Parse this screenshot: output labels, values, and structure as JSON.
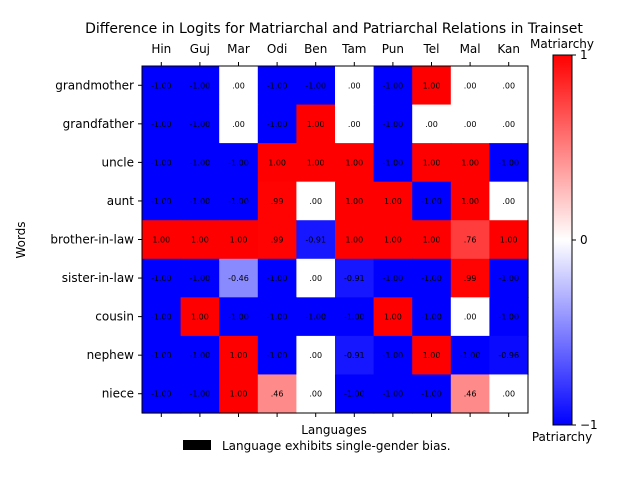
{
  "chart_data": {
    "type": "heatmap",
    "title": "Difference in Logits for Matriarchal and Patriarchal Relations in Trainset",
    "xlabel": "Languages",
    "ylabel": "Words",
    "x_categories": [
      "Hin",
      "Guj",
      "Mar",
      "Odi",
      "Ben",
      "Tam",
      "Pun",
      "Tel",
      "Mal",
      "Kan"
    ],
    "y_categories": [
      "grandmother",
      "grandfather",
      "uncle",
      "aunt",
      "brother-in-law",
      "sister-in-law",
      "cousin",
      "nephew",
      "niece"
    ],
    "values": [
      [
        -1.0,
        -1.0,
        0.0,
        -1.0,
        -1.0,
        0.0,
        -1.0,
        1.0,
        0.0,
        0.0
      ],
      [
        -1.0,
        -1.0,
        0.0,
        -1.0,
        1.0,
        0.0,
        -1.0,
        0.0,
        0.0,
        0.0
      ],
      [
        -1.0,
        -1.0,
        -1.0,
        1.0,
        1.0,
        1.0,
        -1.0,
        1.0,
        1.0,
        -1.0
      ],
      [
        -1.0,
        -1.0,
        -1.0,
        0.99,
        0.0,
        1.0,
        1.0,
        -1.0,
        1.0,
        0.0
      ],
      [
        1.0,
        1.0,
        1.0,
        0.99,
        -0.91,
        1.0,
        1.0,
        1.0,
        0.76,
        1.0
      ],
      [
        -1.0,
        -1.0,
        -0.46,
        -1.0,
        0.0,
        -0.91,
        -1.0,
        -1.0,
        0.99,
        -1.0
      ],
      [
        -1.0,
        1.0,
        -1.0,
        -1.0,
        -1.0,
        -1.0,
        1.0,
        -1.0,
        0.0,
        -1.0
      ],
      [
        -1.0,
        -1.0,
        1.0,
        -1.0,
        0.0,
        -0.91,
        -1.0,
        1.0,
        -1.0,
        -0.96
      ],
      [
        -1.0,
        -1.0,
        1.0,
        0.46,
        0.0,
        -1.0,
        -1.0,
        -1.0,
        0.46,
        0.0
      ]
    ],
    "value_labels": [
      [
        "-1.00",
        "-1.00",
        ".00",
        "-1.00",
        "-1.00",
        ".00",
        "-1.00",
        "1.00",
        ".00",
        ".00"
      ],
      [
        "-1.00",
        "-1.00",
        ".00",
        "-1.00",
        "1.00",
        ".00",
        "-1.00",
        ".00",
        ".00",
        ".00"
      ],
      [
        "-1.00",
        "-1.00",
        "-1.00",
        "1.00",
        "1.00",
        "1.00",
        "-1.00",
        "1.00",
        "1.00",
        "-1.00"
      ],
      [
        "-1.00",
        "-1.00",
        "-1.00",
        ".99",
        ".00",
        "1.00",
        "1.00",
        "-1.00",
        "1.00",
        ".00"
      ],
      [
        "1.00",
        "1.00",
        "1.00",
        ".99",
        "-0.91",
        "1.00",
        "1.00",
        "1.00",
        ".76",
        "1.00"
      ],
      [
        "-1.00",
        "-1.00",
        "-0.46",
        "-1.00",
        ".00",
        "-0.91",
        "-1.00",
        "-1.00",
        ".99",
        "-1.00"
      ],
      [
        "-1.00",
        "1.00",
        "-1.00",
        "-1.00",
        "-1.00",
        "-1.00",
        "1.00",
        "-1.00",
        ".00",
        "-1.00"
      ],
      [
        "-1.00",
        "-1.00",
        "1.00",
        "-1.00",
        ".00",
        "-0.91",
        "-1.00",
        "1.00",
        "-1.00",
        "-0.96"
      ],
      [
        "-1.00",
        "-1.00",
        "1.00",
        ".46",
        ".00",
        "-1.00",
        "-1.00",
        "-1.00",
        ".46",
        ".00"
      ]
    ],
    "colormap": "bwr",
    "colors": {
      "low": "#0000ff",
      "mid": "#ffffff",
      "high": "#ff0000"
    },
    "vmin": -1,
    "vmax": 1,
    "colorbar": {
      "top_label": "Matriarchy",
      "bottom_label": "Patriarchy",
      "ticks": [
        1,
        0,
        -1
      ],
      "tick_labels": [
        "1",
        "0",
        "−1"
      ]
    },
    "legend": {
      "label": "Language exhibits single-gender bias.",
      "placement": "bottom-center",
      "swatch_color": "#000000"
    }
  }
}
